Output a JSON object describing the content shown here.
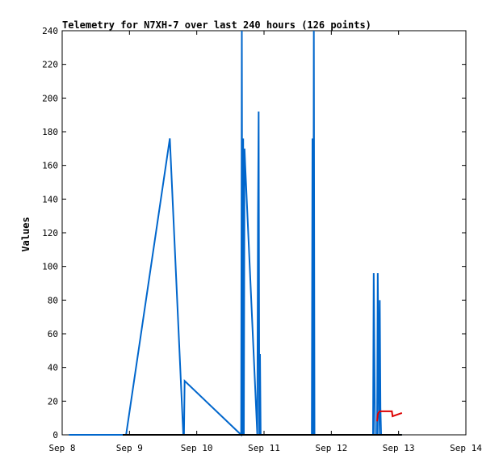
{
  "chart_data": {
    "type": "line",
    "title": "Telemetry for N7XH-7 over last 240 hours (126 points)",
    "xlabel": "",
    "ylabel": "Values",
    "x_ticks": [
      "Sep 8",
      "Sep 9",
      "Sep 10",
      "Sep 11",
      "Sep 12",
      "Sep 13",
      "Sep 14"
    ],
    "y_ticks": [
      0,
      20,
      40,
      60,
      80,
      100,
      120,
      140,
      160,
      180,
      200,
      220,
      240
    ],
    "xlim_days": [
      0,
      6
    ],
    "ylim": [
      0,
      240
    ],
    "grid": false,
    "legend": "none",
    "series": [
      {
        "color": "#0066cc",
        "points": [
          [
            0.1,
            0
          ],
          [
            0.95,
            0
          ],
          [
            1.6,
            176
          ],
          [
            1.8,
            0
          ],
          [
            1.81,
            0
          ],
          [
            1.82,
            32
          ],
          [
            2.66,
            0
          ],
          [
            2.67,
            240
          ],
          [
            2.68,
            0
          ],
          [
            2.69,
            176
          ],
          [
            2.7,
            0
          ],
          [
            2.71,
            170
          ],
          [
            2.72,
            160
          ],
          [
            2.9,
            0
          ],
          [
            2.91,
            128
          ],
          [
            2.92,
            192
          ],
          [
            2.93,
            0
          ],
          [
            2.94,
            48
          ],
          [
            2.95,
            0
          ],
          [
            3.71,
            0
          ],
          [
            3.72,
            176
          ],
          [
            3.73,
            0
          ],
          [
            3.74,
            240
          ],
          [
            3.75,
            0
          ],
          [
            4.62,
            0
          ],
          [
            4.63,
            96
          ],
          [
            4.64,
            48
          ],
          [
            4.65,
            0
          ],
          [
            4.68,
            0
          ],
          [
            4.69,
            96
          ],
          [
            4.7,
            48
          ],
          [
            4.71,
            0
          ],
          [
            4.72,
            80
          ],
          [
            4.73,
            16
          ],
          [
            4.74,
            0
          ],
          [
            5.05,
            0
          ]
        ]
      },
      {
        "color": "#000000",
        "points": [
          [
            0.9,
            0
          ],
          [
            5.05,
            0
          ]
        ]
      },
      {
        "color": "#dd0000",
        "points": [
          [
            4.68,
            8
          ],
          [
            4.69,
            12
          ],
          [
            4.7,
            13
          ],
          [
            4.72,
            14
          ],
          [
            4.9,
            14
          ],
          [
            4.91,
            11
          ],
          [
            5.05,
            13
          ]
        ]
      }
    ]
  }
}
